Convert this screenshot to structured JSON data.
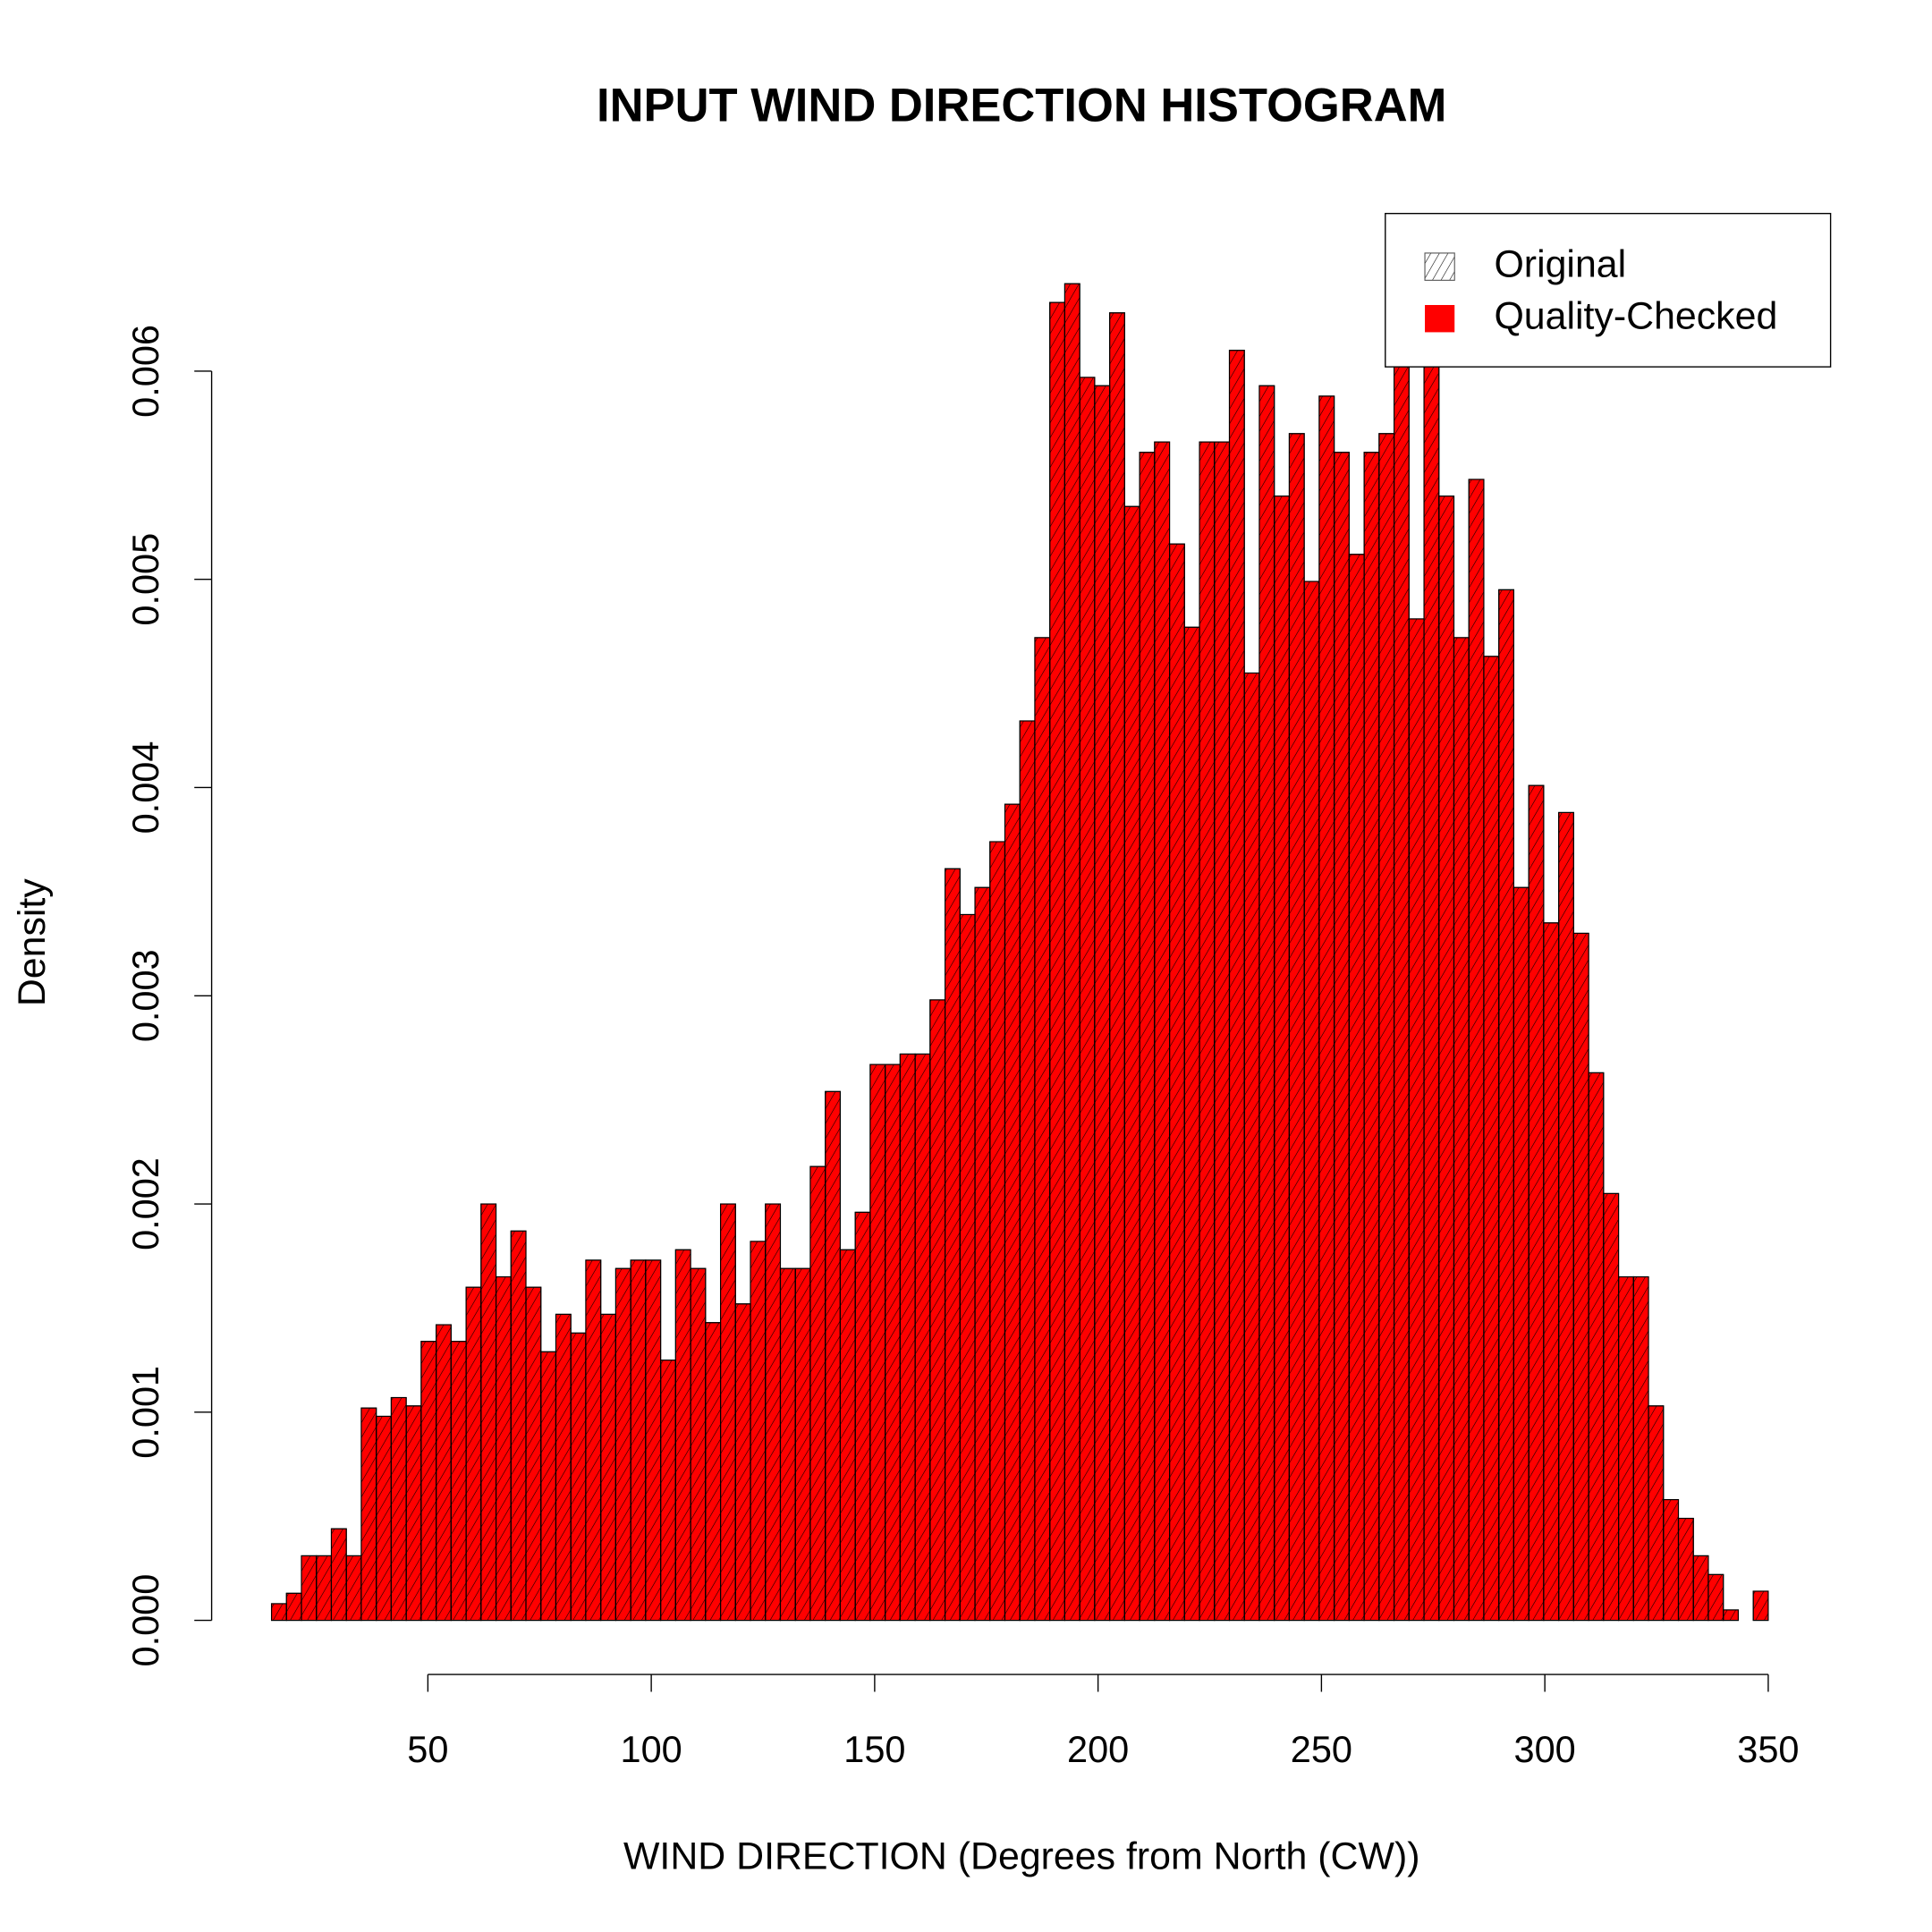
{
  "chart_data": {
    "type": "histogram",
    "title": "INPUT WIND DIRECTION HISTOGRAM",
    "x_label": "WIND DIRECTION (Degrees from North (CW))",
    "y_label": "Density",
    "bins": [
      15,
      18.35,
      21.7,
      25.05,
      28.4,
      31.75,
      35.1,
      38.45,
      41.8,
      45.15,
      48.5,
      51.85,
      55.2,
      58.55,
      61.9,
      65.25,
      68.6,
      71.95,
      75.3,
      78.65,
      82,
      85.35,
      88.7,
      92.05,
      95.4,
      98.75,
      102.1,
      105.45,
      108.8,
      112.15,
      115.5,
      118.85,
      122.2,
      125.55,
      128.9,
      132.25,
      135.6,
      138.95,
      142.3,
      145.65,
      149,
      152.35,
      155.7,
      159.05,
      162.4,
      165.75,
      169.1,
      172.45,
      175.8,
      179.15,
      182.5,
      185.85,
      189.2,
      192.55,
      195.9,
      199.25,
      202.6,
      205.95,
      209.3,
      212.65,
      216,
      219.35,
      222.7,
      226.05,
      229.4,
      232.75,
      236.1,
      239.45,
      242.8,
      246.15,
      249.5,
      252.85,
      256.2,
      259.55,
      262.9,
      266.25,
      269.6,
      272.95,
      276.3,
      279.65,
      283,
      286.35,
      289.7,
      293.05,
      296.4,
      299.75,
      303.1,
      306.45,
      309.8,
      313.15,
      316.5,
      319.85,
      323.2,
      326.55,
      329.9,
      333.25,
      336.6,
      339.95,
      343.3,
      346.65,
      350
    ],
    "series": [
      {
        "name": "Original",
        "color": "#000000",
        "fill": "hatch",
        "values": [
          8e-05,
          0.00013,
          0.00031,
          0.00031,
          0.00044,
          0.00031,
          0.00102,
          0.00098,
          0.00107,
          0.00103,
          0.00134,
          0.00142,
          0.00134,
          0.0016,
          0.002,
          0.00165,
          0.00187,
          0.0016,
          0.00129,
          0.00147,
          0.00138,
          0.00173,
          0.00147,
          0.00169,
          0.00173,
          0.00173,
          0.00125,
          0.00178,
          0.00169,
          0.00143,
          0.002,
          0.00152,
          0.00182,
          0.002,
          0.00169,
          0.00169,
          0.00218,
          0.00254,
          0.00178,
          0.00196,
          0.00267,
          0.00267,
          0.00272,
          0.00272,
          0.00298,
          0.00361,
          0.00339,
          0.00352,
          0.00374,
          0.00392,
          0.00432,
          0.00472,
          0.00633,
          0.00642,
          0.00597,
          0.00593,
          0.00628,
          0.00535,
          0.00561,
          0.00566,
          0.00517,
          0.00477,
          0.00566,
          0.00566,
          0.0061,
          0.00455,
          0.00593,
          0.0054,
          0.0057,
          0.00499,
          0.00588,
          0.00561,
          0.00512,
          0.00561,
          0.0057,
          0.0063,
          0.00481,
          0.0063,
          0.0054,
          0.00472,
          0.00548,
          0.00463,
          0.00495,
          0.00352,
          0.00401,
          0.00335,
          0.00388,
          0.0033,
          0.00263,
          0.00205,
          0.00165,
          0.00165,
          0.00103,
          0.00058,
          0.00049,
          0.00031,
          0.00022,
          5e-05,
          0,
          0.00014
        ]
      },
      {
        "name": "Quality-Checked",
        "color": "#ff0000",
        "fill": "solid",
        "values": [
          8e-05,
          0.00013,
          0.00031,
          0.00031,
          0.00044,
          0.00031,
          0.00102,
          0.00098,
          0.00107,
          0.00103,
          0.00134,
          0.00142,
          0.00134,
          0.0016,
          0.002,
          0.00165,
          0.00187,
          0.0016,
          0.00129,
          0.00147,
          0.00138,
          0.00173,
          0.00147,
          0.00169,
          0.00173,
          0.00173,
          0.00125,
          0.00178,
          0.00169,
          0.00143,
          0.002,
          0.00152,
          0.00182,
          0.002,
          0.00169,
          0.00169,
          0.00218,
          0.00254,
          0.00178,
          0.00196,
          0.00267,
          0.00267,
          0.00272,
          0.00272,
          0.00298,
          0.00361,
          0.00339,
          0.00352,
          0.00374,
          0.00392,
          0.00432,
          0.00472,
          0.00633,
          0.00642,
          0.00597,
          0.00593,
          0.00628,
          0.00535,
          0.00561,
          0.00566,
          0.00517,
          0.00477,
          0.00566,
          0.00566,
          0.0061,
          0.00455,
          0.00593,
          0.0054,
          0.0057,
          0.00499,
          0.00588,
          0.00561,
          0.00512,
          0.00561,
          0.0057,
          0.0063,
          0.00481,
          0.0063,
          0.0054,
          0.00472,
          0.00548,
          0.00463,
          0.00495,
          0.00352,
          0.00401,
          0.00335,
          0.00388,
          0.0033,
          0.00263,
          0.00205,
          0.00165,
          0.00165,
          0.00103,
          0.00058,
          0.00049,
          0.00031,
          0.00022,
          5e-05,
          0,
          0.00014
        ]
      }
    ],
    "xlim": [
      1.6,
      363.4
    ],
    "ylim": [
      -0.00026,
      0.00668
    ],
    "xticks": [
      50,
      100,
      150,
      200,
      250,
      300,
      350
    ],
    "yticks": [
      {
        "value": 0,
        "label": "0.000"
      },
      {
        "value": 0.001,
        "label": "0.001"
      },
      {
        "value": 0.002,
        "label": "0.002"
      },
      {
        "value": 0.003,
        "label": "0.003"
      },
      {
        "value": 0.004,
        "label": "0.004"
      },
      {
        "value": 0.005,
        "label": "0.005"
      },
      {
        "value": 0.006,
        "label": "0.006"
      }
    ],
    "grid": false,
    "legend": "topright"
  }
}
